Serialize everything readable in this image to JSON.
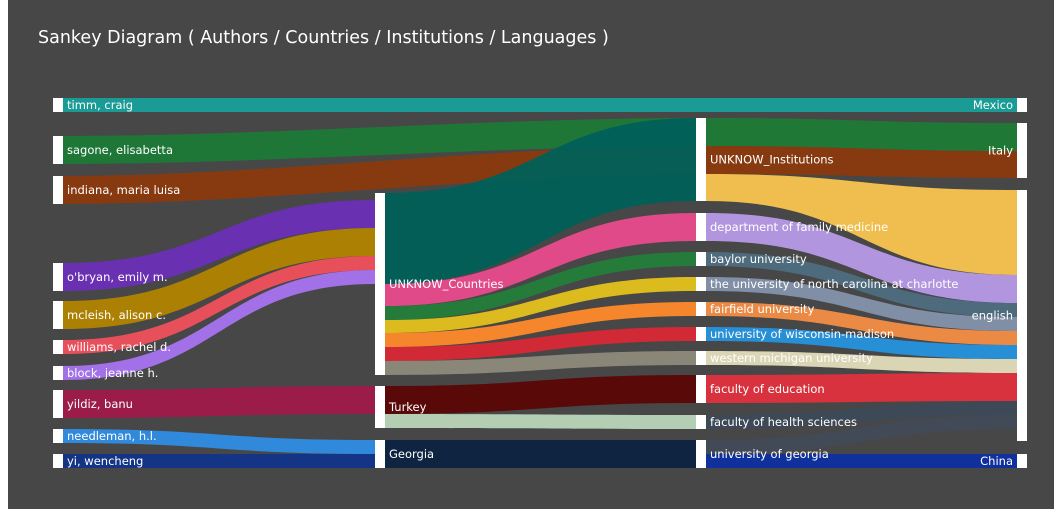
{
  "title": "Sankey Diagram ( Authors / Countries / Institutions / Languages )",
  "colors": {
    "background": "#474747",
    "node": "#ffffff",
    "text": "#ffffff"
  },
  "chart_data": {
    "type": "sankey",
    "columns": [
      "Authors",
      "Countries",
      "Institutions",
      "Languages"
    ],
    "nodes": {
      "authors": [
        "timm, craig",
        "sagone, elisabetta",
        "indiana, maria luisa",
        "o'bryan, emily m.",
        "mcleish, alison c.",
        "williams, rachel d.",
        "block, jeanne h.",
        "yildiz, banu",
        "needleman, h.l.",
        "yi, wencheng"
      ],
      "countries": [
        "UNKNOW_Countries",
        "Turkey",
        "Georgia"
      ],
      "institutions": [
        "UNKNOW_Institutions",
        "department of family medicine",
        "baylor university",
        "the university of north carolina at charlotte",
        "fairfield university",
        "university of wisconsin-madison",
        "western michigan university",
        "faculty of education",
        "faculty of health sciences",
        "university of georgia"
      ],
      "languages": [
        "Mexico",
        "Italy",
        "english",
        "China"
      ]
    },
    "links": [
      {
        "source": "timm, craig",
        "target": "Mexico",
        "value": 1,
        "color": "#19a09b"
      },
      {
        "source": "sagone, elisabetta",
        "target": "UNKNOW_Institutions",
        "value": 2,
        "color": "#1e7a37"
      },
      {
        "source": "indiana, maria luisa",
        "target": "UNKNOW_Institutions",
        "value": 2,
        "color": "#8b3a0e"
      },
      {
        "source": "o'bryan, emily m.",
        "target": "UNKNOW_Countries",
        "value": 2,
        "color": "#6c2fb8"
      },
      {
        "source": "mcleish, alison c.",
        "target": "UNKNOW_Countries",
        "value": 2,
        "color": "#b28400"
      },
      {
        "source": "williams, rachel d.",
        "target": "UNKNOW_Countries",
        "value": 1,
        "color": "#f0515d"
      },
      {
        "source": "block, jeanne h.",
        "target": "UNKNOW_Countries",
        "value": 1,
        "color": "#a873f0"
      },
      {
        "source": "yildiz, banu",
        "target": "Turkey",
        "value": 2,
        "color": "#a01a4a"
      },
      {
        "source": "needleman, h.l.",
        "target": "Georgia",
        "value": 1,
        "color": "#2f8de4"
      },
      {
        "source": "yi, wencheng",
        "target": "Georgia",
        "value": 1,
        "color": "#12348a"
      },
      {
        "source": "UNKNOW_Countries",
        "target": "UNKNOW_Institutions",
        "value": 6,
        "color": "#00605a"
      },
      {
        "source": "UNKNOW_Countries",
        "target": "department of family medicine",
        "value": 2,
        "color": "#ea4b8c"
      },
      {
        "source": "UNKNOW_Countries",
        "target": "baylor university",
        "value": 1,
        "color": "#24803a"
      },
      {
        "source": "UNKNOW_Countries",
        "target": "the university of north carolina at charlotte",
        "value": 1,
        "color": "#e5c21c"
      },
      {
        "source": "UNKNOW_Countries",
        "target": "fairfield university",
        "value": 1,
        "color": "#ff8a2a"
      },
      {
        "source": "UNKNOW_Countries",
        "target": "university of wisconsin-madison",
        "value": 1,
        "color": "#da2837"
      },
      {
        "source": "UNKNOW_Countries",
        "target": "western michigan university",
        "value": 1,
        "color": "#8f8b7b"
      },
      {
        "source": "Turkey",
        "target": "faculty of education",
        "value": 2,
        "color": "#5c0606"
      },
      {
        "source": "Turkey",
        "target": "faculty of health sciences",
        "value": 1,
        "color": "#b9d6b9"
      },
      {
        "source": "Georgia",
        "target": "university of georgia",
        "value": 2,
        "color": "#0d2340"
      },
      {
        "source": "UNKNOW_Institutions",
        "target": "Italy",
        "value": 2,
        "color": "#1f7b36"
      },
      {
        "source": "UNKNOW_Institutions",
        "target": "Italy",
        "value": 2,
        "color": "#8b3a0e"
      },
      {
        "source": "UNKNOW_Institutions",
        "target": "english",
        "value": 6,
        "color": "#f9c54f"
      },
      {
        "source": "department of family medicine",
        "target": "english",
        "value": 2,
        "color": "#b79be8"
      },
      {
        "source": "baylor university",
        "target": "english",
        "value": 1,
        "color": "#4f6e81"
      },
      {
        "source": "the university of north carolina at charlotte",
        "target": "english",
        "value": 1,
        "color": "#8593ac"
      },
      {
        "source": "fairfield university",
        "target": "english",
        "value": 1,
        "color": "#f38e46"
      },
      {
        "source": "university of wisconsin-madison",
        "target": "english",
        "value": 1,
        "color": "#2693dd"
      },
      {
        "source": "western michigan university",
        "target": "english",
        "value": 1,
        "color": "#e3ddba"
      },
      {
        "source": "faculty of education",
        "target": "english",
        "value": 2,
        "color": "#e0313f"
      },
      {
        "source": "faculty of health sciences",
        "target": "english",
        "value": 1,
        "color": "#3e4a59"
      },
      {
        "source": "university of georgia",
        "target": "english",
        "value": 1,
        "color": "#434b58"
      },
      {
        "source": "university of georgia",
        "target": "China",
        "value": 1,
        "color": "#0e2fa1"
      }
    ]
  }
}
